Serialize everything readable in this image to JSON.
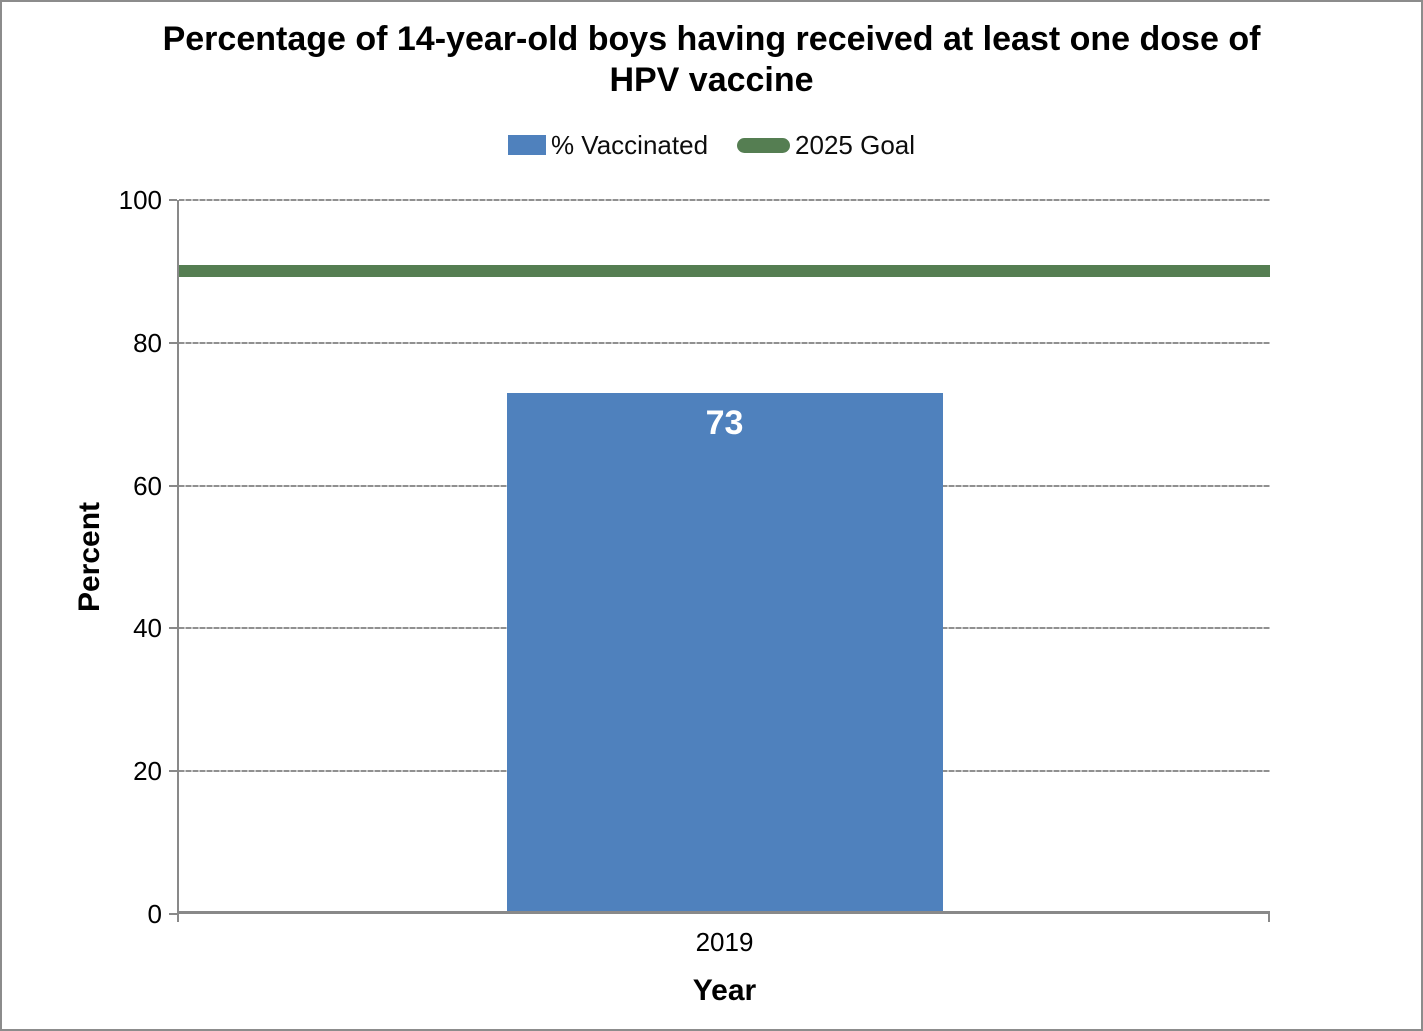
{
  "chart_data": {
    "type": "bar",
    "title": "Percentage of 14-year-old boys having received at least one dose of HPV vaccine",
    "categories": [
      "2019"
    ],
    "series": [
      {
        "name": "% Vaccinated",
        "type": "bar",
        "values": [
          73
        ],
        "color": "#4F81BD"
      },
      {
        "name": "2025 Goal",
        "type": "goal-line",
        "value": 90,
        "color": "#557E52"
      }
    ],
    "xlabel": "Year",
    "ylabel": "Percent",
    "ylim": [
      0,
      100
    ],
    "yticks": [
      0,
      20,
      40,
      60,
      80,
      100
    ],
    "grid": true,
    "legend_position": "top",
    "bar_label_color": "#FFFFFF"
  },
  "colors": {
    "axis": "#898989",
    "gridline": "#909090",
    "gridline_gap": "#C8C8C8",
    "canvas_border": "#8C8C8C",
    "text": "#000000"
  }
}
